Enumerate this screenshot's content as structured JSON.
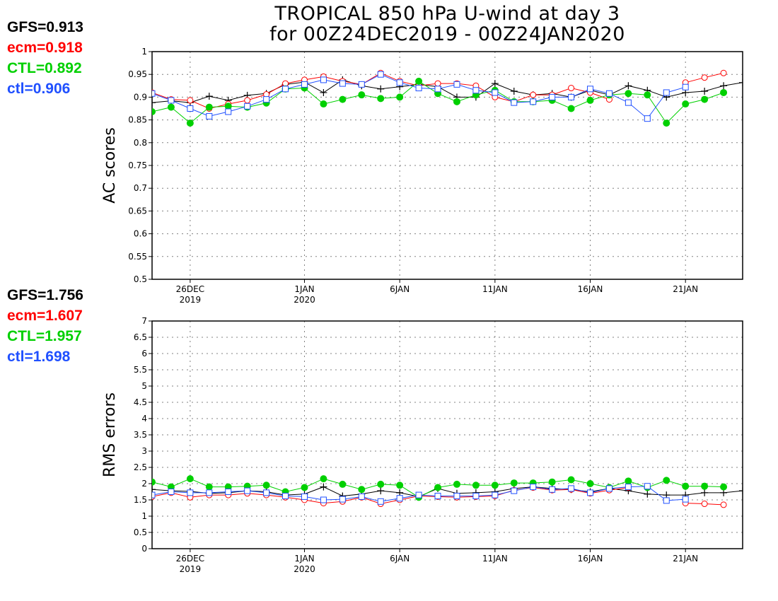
{
  "title": {
    "line1": "TROPICAL 850 hPa U-wind at day 3",
    "line2": "for 00Z24DEC2019 - 00Z24JAN2020"
  },
  "colors": {
    "GFS": "#000000",
    "ecm": "#ff0000",
    "CTL": "#00d000",
    "ctl": "#2050ff",
    "grid": "#808080"
  },
  "ac_summary": [
    {
      "label": "GFS=0.913",
      "series": "GFS"
    },
    {
      "label": "ecm=0.918",
      "series": "ecm"
    },
    {
      "label": "CTL=0.892",
      "series": "CTL"
    },
    {
      "label": "ctl=0.906",
      "series": "ctl"
    }
  ],
  "rms_summary": [
    {
      "label": "GFS=1.756",
      "series": "GFS"
    },
    {
      "label": "ecm=1.607",
      "series": "ecm"
    },
    {
      "label": "CTL=1.957",
      "series": "CTL"
    },
    {
      "label": "ctl=1.698",
      "series": "ctl"
    }
  ],
  "chart_data": [
    {
      "type": "line",
      "ylabel": "AC scores",
      "xlim": [
        0,
        31
      ],
      "ylim": [
        0.5,
        1
      ],
      "yticks": [
        0.5,
        0.55,
        0.6,
        0.65,
        0.7,
        0.75,
        0.8,
        0.85,
        0.9,
        0.95,
        1
      ],
      "ytick_labels": [
        "0.5",
        "0.55",
        "0.6",
        "0.65",
        "0.7",
        "0.75",
        "0.8",
        "0.85",
        "0.9",
        "0.95",
        "1"
      ],
      "xticks": [
        {
          "x": 2,
          "label": "26DEC",
          "sublabel": "2019"
        },
        {
          "x": 8,
          "label": "1JAN",
          "sublabel": "2020"
        },
        {
          "x": 13,
          "label": "6JAN",
          "sublabel": ""
        },
        {
          "x": 18,
          "label": "11JAN",
          "sublabel": ""
        },
        {
          "x": 23,
          "label": "16JAN",
          "sublabel": ""
        },
        {
          "x": 28,
          "label": "21JAN",
          "sublabel": ""
        }
      ],
      "grid": true,
      "series": [
        {
          "key": "GFS",
          "marker": "plus",
          "x": [
            0,
            1,
            2,
            3,
            4,
            5,
            6,
            7,
            8,
            9,
            10,
            11,
            12,
            13,
            14,
            15,
            16,
            17,
            18,
            19,
            20,
            21,
            22,
            23,
            24,
            25,
            26,
            27,
            28,
            29,
            30,
            31
          ],
          "values": [
            0.888,
            0.892,
            0.888,
            0.902,
            0.893,
            0.904,
            0.908,
            0.928,
            0.933,
            0.91,
            0.938,
            0.925,
            0.918,
            0.923,
            0.928,
            0.923,
            0.9,
            0.9,
            0.93,
            0.913,
            0.905,
            0.908,
            0.9,
            0.915,
            0.905,
            0.925,
            0.915,
            0.9,
            0.91,
            0.913,
            0.925,
            0.932
          ]
        },
        {
          "key": "ecm",
          "marker": "circle",
          "x": [
            0,
            1,
            2,
            3,
            4,
            5,
            6,
            7,
            8,
            9,
            10,
            11,
            12,
            13,
            14,
            15,
            16,
            17,
            18,
            19,
            20,
            21,
            22,
            23,
            24,
            25,
            26,
            27,
            28,
            29,
            30
          ],
          "values": [
            0.91,
            0.895,
            0.893,
            0.875,
            0.885,
            0.893,
            0.906,
            0.93,
            0.938,
            0.945,
            0.935,
            0.928,
            0.953,
            0.935,
            0.925,
            0.93,
            0.93,
            0.925,
            0.9,
            0.89,
            0.905,
            0.905,
            0.92,
            0.91,
            0.895,
            null,
            null,
            null,
            0.932,
            0.943,
            0.953
          ]
        },
        {
          "key": "CTL",
          "marker": "dot",
          "x": [
            0,
            1,
            2,
            3,
            4,
            5,
            6,
            7,
            8,
            9,
            10,
            11,
            12,
            13,
            14,
            15,
            16,
            17,
            18,
            19,
            20,
            21,
            22,
            23,
            24,
            25,
            26,
            27,
            28,
            29,
            30
          ],
          "values": [
            0.868,
            0.878,
            0.843,
            0.878,
            0.88,
            0.878,
            0.887,
            0.918,
            0.92,
            0.885,
            0.895,
            0.905,
            0.897,
            0.9,
            0.935,
            0.908,
            0.89,
            0.905,
            0.915,
            0.89,
            0.89,
            0.893,
            0.875,
            0.893,
            0.905,
            0.908,
            0.905,
            0.843,
            0.885,
            0.895,
            0.91
          ]
        },
        {
          "key": "ctl",
          "marker": "square",
          "x": [
            0,
            1,
            2,
            3,
            4,
            5,
            6,
            7,
            8,
            9,
            10,
            11,
            12,
            13,
            14,
            15,
            16,
            17,
            18,
            19,
            20,
            21,
            22,
            23,
            24,
            25,
            26,
            27,
            28
          ],
          "values": [
            0.908,
            0.893,
            0.875,
            0.858,
            0.868,
            0.88,
            0.895,
            0.918,
            0.928,
            0.938,
            0.93,
            0.928,
            0.95,
            0.932,
            0.92,
            0.918,
            0.928,
            0.915,
            0.91,
            0.888,
            0.89,
            0.9,
            0.9,
            0.918,
            0.908,
            0.888,
            0.853,
            0.91,
            0.922
          ]
        }
      ]
    },
    {
      "type": "line",
      "ylabel": "RMS errors",
      "xlim": [
        0,
        31
      ],
      "ylim": [
        0,
        7
      ],
      "yticks": [
        0,
        0.5,
        1,
        1.5,
        2,
        2.5,
        3,
        3.5,
        4,
        4.5,
        5,
        5.5,
        6,
        6.5,
        7
      ],
      "ytick_labels": [
        "0",
        "0.5",
        "1",
        "1.5",
        "2",
        "2.5",
        "3",
        "3.5",
        "4",
        "4.5",
        "5",
        "5.5",
        "6",
        "6.5",
        "7"
      ],
      "xticks": [
        {
          "x": 2,
          "label": "26DEC",
          "sublabel": "2019"
        },
        {
          "x": 8,
          "label": "1JAN",
          "sublabel": "2020"
        },
        {
          "x": 13,
          "label": "6JAN",
          "sublabel": ""
        },
        {
          "x": 18,
          "label": "11JAN",
          "sublabel": ""
        },
        {
          "x": 23,
          "label": "16JAN",
          "sublabel": ""
        },
        {
          "x": 28,
          "label": "21JAN",
          "sublabel": ""
        }
      ],
      "grid": true,
      "series": [
        {
          "key": "GFS",
          "marker": "plus",
          "x": [
            0,
            1,
            2,
            3,
            4,
            5,
            6,
            7,
            8,
            9,
            10,
            11,
            12,
            13,
            14,
            15,
            16,
            17,
            18,
            19,
            20,
            21,
            22,
            23,
            24,
            25,
            26,
            27,
            28,
            29,
            30,
            31
          ],
          "values": [
            1.82,
            1.78,
            1.76,
            1.7,
            1.72,
            1.78,
            1.75,
            1.65,
            1.68,
            1.9,
            1.62,
            1.68,
            1.78,
            1.72,
            1.6,
            1.85,
            1.7,
            1.72,
            1.75,
            1.85,
            1.9,
            1.85,
            1.82,
            1.75,
            1.85,
            1.78,
            1.68,
            1.65,
            1.65,
            1.72,
            1.72,
            1.78
          ]
        },
        {
          "key": "ecm",
          "marker": "circle",
          "x": [
            0,
            1,
            2,
            3,
            4,
            5,
            6,
            7,
            8,
            9,
            10,
            11,
            12,
            13,
            14,
            15,
            16,
            17,
            18,
            19,
            20,
            21,
            22,
            23,
            24,
            25,
            26,
            27,
            28,
            29,
            30
          ],
          "values": [
            1.6,
            1.72,
            1.58,
            1.65,
            1.65,
            1.7,
            1.65,
            1.58,
            1.5,
            1.4,
            1.45,
            1.58,
            1.38,
            1.5,
            1.62,
            1.6,
            1.58,
            1.6,
            1.62,
            1.8,
            1.88,
            1.8,
            1.82,
            1.7,
            1.8,
            1.88,
            null,
            null,
            1.4,
            1.38,
            1.35
          ]
        },
        {
          "key": "CTL",
          "marker": "dot",
          "x": [
            0,
            1,
            2,
            3,
            4,
            5,
            6,
            7,
            8,
            9,
            10,
            11,
            12,
            13,
            14,
            15,
            16,
            17,
            18,
            19,
            20,
            21,
            22,
            23,
            24,
            25,
            26,
            27,
            28,
            29,
            30
          ],
          "values": [
            2.05,
            1.9,
            2.15,
            1.9,
            1.9,
            1.92,
            1.95,
            1.75,
            1.88,
            2.15,
            1.98,
            1.82,
            1.98,
            1.95,
            1.58,
            1.88,
            1.98,
            1.95,
            1.95,
            2.02,
            2.02,
            2.05,
            2.12,
            2.0,
            1.88,
            2.08,
            1.88,
            2.1,
            1.92,
            1.92,
            1.9
          ]
        },
        {
          "key": "ctl",
          "marker": "square",
          "x": [
            0,
            1,
            2,
            3,
            4,
            5,
            6,
            7,
            8,
            9,
            10,
            11,
            12,
            13,
            14,
            15,
            16,
            17,
            18,
            19,
            20,
            21,
            22,
            23,
            24,
            25,
            26,
            27,
            28
          ],
          "values": [
            1.65,
            1.75,
            1.72,
            1.72,
            1.75,
            1.78,
            1.72,
            1.62,
            1.6,
            1.5,
            1.52,
            1.6,
            1.45,
            1.55,
            1.65,
            1.62,
            1.62,
            1.62,
            1.65,
            1.78,
            1.9,
            1.82,
            1.85,
            1.72,
            1.85,
            1.9,
            1.92,
            1.48,
            1.52
          ]
        }
      ]
    }
  ]
}
